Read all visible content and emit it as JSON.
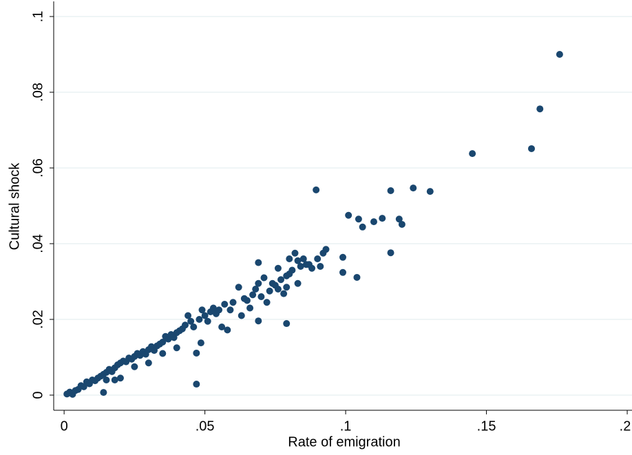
{
  "chart_data": {
    "type": "scatter",
    "x_label": "Rate of emigration",
    "y_label": "Cultural shock",
    "color": "#1a476f",
    "grid": true,
    "xlim": [
      -0.0037,
      0.2017
    ],
    "ylim": [
      -0.004,
      0.104
    ],
    "xticks": [
      0,
      {
        "value": 0.05,
        "label": ".05"
      },
      {
        "value": 0.1,
        "label": ".1"
      },
      {
        "value": 0.15,
        "label": ".15"
      },
      {
        "value": 0.2,
        "label": ".2"
      }
    ],
    "yticks": [
      0,
      {
        "value": 0.02,
        "label": ".02"
      },
      {
        "value": 0.04,
        "label": ".04"
      },
      {
        "value": 0.06,
        "label": ".06"
      },
      {
        "value": 0.08,
        "label": ".08"
      },
      {
        "value": 0.1,
        "label": ".1"
      }
    ],
    "x": [
      0.176,
      0.169,
      0.166,
      0.145,
      0.124,
      0.13,
      0.116,
      0.0895,
      0.101,
      0.1046,
      0.106,
      0.11,
      0.113,
      0.119,
      0.12,
      0.116,
      0.099,
      0.099,
      0.104,
      0.093,
      0.079,
      0.069,
      0.047,
      0.014,
      0.047,
      0.0486,
      0.001,
      0.002,
      0.003,
      0.004,
      0.005,
      0.006,
      0.007,
      0.008,
      0.009,
      0.01,
      0.011,
      0.012,
      0.013,
      0.014,
      0.015,
      0.016,
      0.017,
      0.018,
      0.019,
      0.02,
      0.021,
      0.022,
      0.023,
      0.024,
      0.025,
      0.026,
      0.027,
      0.028,
      0.029,
      0.03,
      0.031,
      0.032,
      0.033,
      0.034,
      0.035,
      0.036,
      0.037,
      0.038,
      0.039,
      0.04,
      0.041,
      0.042,
      0.043,
      0.044,
      0.045,
      0.046,
      0.048,
      0.049,
      0.05,
      0.051,
      0.052,
      0.053,
      0.054,
      0.055,
      0.056,
      0.057,
      0.058,
      0.059,
      0.06,
      0.062,
      0.063,
      0.064,
      0.065,
      0.066,
      0.067,
      0.068,
      0.069,
      0.07,
      0.071,
      0.072,
      0.073,
      0.074,
      0.075,
      0.076,
      0.077,
      0.078,
      0.079,
      0.08,
      0.081,
      0.082,
      0.083,
      0.084,
      0.085,
      0.086,
      0.087,
      0.088,
      0.09,
      0.091,
      0.092,
      0.069,
      0.018,
      0.02,
      0.03,
      0.04,
      0.035,
      0.025,
      0.015,
      0.076,
      0.08,
      0.083,
      0.079
    ],
    "y": [
      0.09,
      0.0756,
      0.0651,
      0.0638,
      0.0547,
      0.0538,
      0.054,
      0.0542,
      0.0475,
      0.0465,
      0.0444,
      0.0458,
      0.0467,
      0.0465,
      0.0451,
      0.0376,
      0.0364,
      0.0324,
      0.0311,
      0.0385,
      0.0189,
      0.0196,
      0.0029,
      0.0007,
      0.0111,
      0.0138,
      0.0003,
      0.0008,
      0.0002,
      0.0012,
      0.0015,
      0.0025,
      0.0022,
      0.0035,
      0.003,
      0.004,
      0.0038,
      0.0045,
      0.005,
      0.0055,
      0.006,
      0.0068,
      0.0062,
      0.0072,
      0.008,
      0.0085,
      0.009,
      0.0088,
      0.0098,
      0.0095,
      0.0102,
      0.011,
      0.0105,
      0.0115,
      0.0108,
      0.012,
      0.0128,
      0.0118,
      0.013,
      0.0135,
      0.014,
      0.0155,
      0.0148,
      0.016,
      0.0152,
      0.0165,
      0.017,
      0.0175,
      0.0185,
      0.021,
      0.0195,
      0.018,
      0.02,
      0.0225,
      0.021,
      0.0195,
      0.022,
      0.023,
      0.0215,
      0.0225,
      0.018,
      0.024,
      0.0172,
      0.0225,
      0.0245,
      0.0285,
      0.021,
      0.0255,
      0.025,
      0.023,
      0.0265,
      0.028,
      0.0295,
      0.026,
      0.031,
      0.0245,
      0.0275,
      0.0295,
      0.029,
      0.028,
      0.0305,
      0.0268,
      0.0315,
      0.036,
      0.033,
      0.0375,
      0.0355,
      0.034,
      0.036,
      0.0345,
      0.0345,
      0.0335,
      0.036,
      0.034,
      0.0375,
      0.035,
      0.004,
      0.0045,
      0.0085,
      0.0125,
      0.011,
      0.0075,
      0.004,
      0.0335,
      0.032,
      0.0295,
      0.0285
    ]
  }
}
